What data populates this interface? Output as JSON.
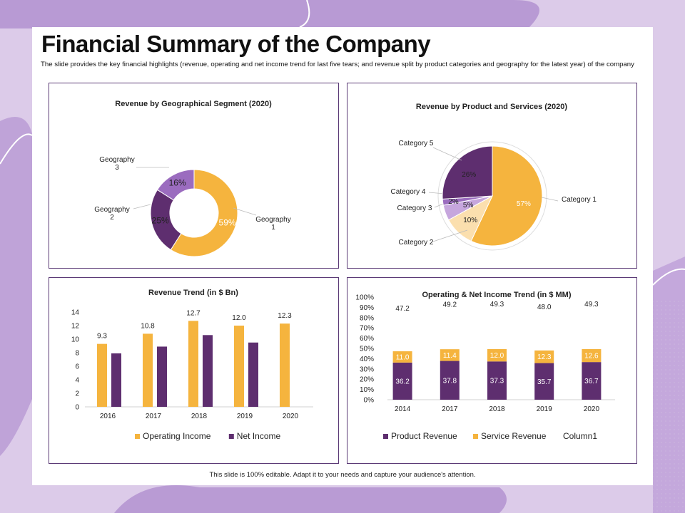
{
  "slide": {
    "title": "Financial Summary of the Company",
    "subtitle": "The slide provides the key financial highlights (revenue, operating and net income trend for last five tears; and revenue split by product categories and geography for the latest year) of the company",
    "footer": "This slide is 100% editable. Adapt it to your needs and capture your audience's attention."
  },
  "colors": {
    "orange": "#f5b43e",
    "purple": "#5e2e6f",
    "violet": "#9b6cbf",
    "lavender": "#c6a6dd",
    "peach": "#fbdfae",
    "background": "#dccbe9"
  },
  "chart_data": [
    {
      "id": "geo",
      "type": "pie",
      "variant": "donut",
      "title": "Revenue by Geographical Segment (2020)",
      "slices": [
        {
          "label": "Geography 1",
          "value": 59,
          "display": "59%",
          "color": "#f5b43e"
        },
        {
          "label": "Geography 2",
          "value": 25,
          "display": "25%",
          "color": "#5e2e6f"
        },
        {
          "label": "Geography 3",
          "value": 16,
          "display": "16%",
          "color": "#9b6cbf"
        }
      ]
    },
    {
      "id": "product",
      "type": "pie",
      "title": "Revenue by Product and Services (2020)",
      "slices": [
        {
          "label": "Category 1",
          "value": 57,
          "display": "57%",
          "color": "#f5b43e"
        },
        {
          "label": "Category 2",
          "value": 10,
          "display": "10%",
          "color": "#fbdfae"
        },
        {
          "label": "Category 3",
          "value": 5,
          "display": "5%",
          "color": "#c6a6dd"
        },
        {
          "label": "Category 4",
          "value": 2,
          "display": "2%",
          "color": "#9b6cbf"
        },
        {
          "label": "Category 5",
          "value": 26,
          "display": "26%",
          "color": "#5e2e6f"
        }
      ]
    },
    {
      "id": "trend",
      "type": "bar",
      "title": "Revenue Trend (in $ Bn)",
      "categories": [
        "2016",
        "2017",
        "2018",
        "2019",
        "2020"
      ],
      "ylim": [
        0,
        14
      ],
      "yticks": [
        0,
        2,
        4,
        6,
        8,
        10,
        12,
        14
      ],
      "legend": "bottom",
      "series": [
        {
          "name": "Operating Income",
          "color": "#f5b43e",
          "values": [
            9.3,
            10.8,
            12.7,
            12.0,
            12.3
          ],
          "labels": [
            "9.3",
            "10.8",
            "12.7",
            "12.0",
            "12.3"
          ]
        },
        {
          "name": "Net Income",
          "color": "#5e2e6f",
          "values": [
            7.9,
            8.9,
            10.6,
            9.5,
            null
          ]
        }
      ]
    },
    {
      "id": "income",
      "type": "bar",
      "stacked": true,
      "title": "Operating & Net Income Trend (in $ MM)",
      "categories": [
        "2014",
        "2017",
        "2018",
        "2019",
        "2020"
      ],
      "ylim": [
        0,
        100
      ],
      "yticks": [
        "0%",
        "10%",
        "20%",
        "30%",
        "40%",
        "50%",
        "60%",
        "70%",
        "80%",
        "90%",
        "100%"
      ],
      "legend": "bottom",
      "series": [
        {
          "name": "Product Revenue",
          "color": "#5e2e6f",
          "values": [
            36.2,
            37.8,
            37.3,
            35.7,
            36.7
          ],
          "labels": [
            "36.2",
            "37.8",
            "37.3",
            "35.7",
            "36.7"
          ]
        },
        {
          "name": "Service Revenue",
          "color": "#f5b43e",
          "values": [
            11.0,
            11.4,
            12.0,
            12.3,
            12.6
          ],
          "labels": [
            "11.0",
            "11.4",
            "12.0",
            "12.3",
            "12.6"
          ]
        },
        {
          "name": "Column1",
          "color": "#ffffff",
          "values": [
            47.2,
            49.2,
            49.3,
            48.0,
            49.3
          ],
          "labels": [
            "47.2",
            "49.2",
            "49.3",
            "48.0",
            "49.3"
          ]
        }
      ]
    }
  ]
}
